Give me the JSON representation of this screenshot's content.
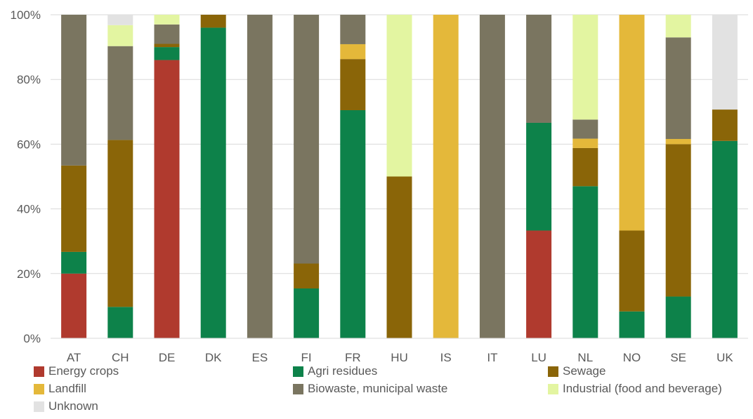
{
  "chart_data": {
    "type": "bar",
    "stacked": true,
    "normalized": true,
    "categories": [
      "AT",
      "CH",
      "DE",
      "DK",
      "ES",
      "FI",
      "FR",
      "HU",
      "IS",
      "IT",
      "LU",
      "NL",
      "NO",
      "SE",
      "UK"
    ],
    "ylim": [
      0,
      100
    ],
    "yticks": [
      "0%",
      "20%",
      "40%",
      "60%",
      "80%",
      "100%"
    ],
    "grid": true,
    "legend_position": "bottom",
    "series": [
      {
        "name": "Energy crops",
        "color": "#b03a2e",
        "values": [
          20,
          0,
          86,
          0,
          0,
          0,
          0,
          0,
          0,
          0,
          33.3,
          0,
          0,
          0,
          0
        ]
      },
      {
        "name": "Agri residues",
        "color": "#0d824a",
        "values": [
          6.7,
          9.7,
          4,
          96,
          0,
          15.4,
          70.5,
          0,
          0,
          0,
          33.3,
          47,
          8.3,
          12.9,
          61
        ]
      },
      {
        "name": "Sewage",
        "color": "#8a6508",
        "values": [
          26.7,
          51.6,
          1,
          4,
          0,
          7.7,
          15.8,
          50,
          0,
          0,
          0,
          11.8,
          25,
          47.1,
          9.7
        ]
      },
      {
        "name": "Landfill",
        "color": "#e4b83a",
        "values": [
          0,
          0,
          0,
          0,
          0,
          0,
          4.6,
          0,
          100,
          0,
          0,
          2.9,
          66.7,
          1.6,
          0
        ]
      },
      {
        "name": "Biowaste, municipal waste",
        "color": "#7a7560",
        "values": [
          46.6,
          29,
          6,
          0,
          100,
          76.9,
          9.1,
          0,
          0,
          100,
          33.4,
          5.9,
          0,
          31.4,
          0
        ]
      },
      {
        "name": "Industrial (food and beverage)",
        "color": "#e3f5a1",
        "values": [
          0,
          6.5,
          3,
          0,
          0,
          0,
          0,
          50,
          0,
          0,
          0,
          32.4,
          0,
          7,
          0
        ]
      },
      {
        "name": "Unknown",
        "color": "#e2e2e2",
        "values": [
          0,
          3.2,
          0,
          0,
          0,
          0,
          0,
          0,
          0,
          0,
          0,
          0,
          0,
          0,
          29.3
        ]
      }
    ]
  }
}
